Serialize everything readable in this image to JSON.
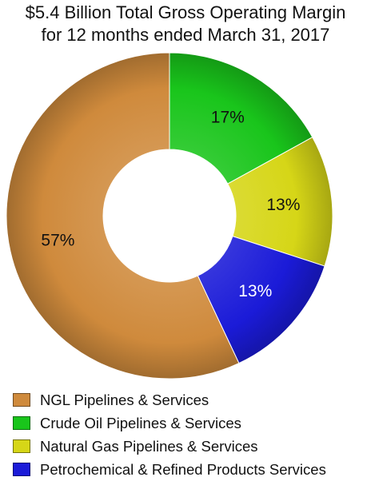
{
  "chart_data": {
    "type": "pie",
    "title_lines": [
      "$5.4 Billion Total Gross Operating Margin",
      "for 12 months ended March 31, 2017"
    ],
    "donut": true,
    "categories": [
      "Crude Oil Pipelines & Services",
      "Natural Gas Pipelines & Services",
      "Petrochemical & Refined Products Services",
      "NGL Pipelines & Services"
    ],
    "values": [
      17,
      13,
      13,
      57
    ],
    "data_labels": [
      "17%",
      "13%",
      "13%",
      "57%"
    ],
    "colors": [
      "#19c51b",
      "#d6d617",
      "#1b1bd8",
      "#cf8a3c"
    ],
    "label_colors": [
      "#111111",
      "#111111",
      "#ffffff",
      "#111111"
    ],
    "legend_placement": "bottom",
    "legend": [
      {
        "label": "NGL Pipelines & Services",
        "color": "#cf8a3c"
      },
      {
        "label": "Crude Oil Pipelines & Services",
        "color": "#19c51b"
      },
      {
        "label": "Natural Gas Pipelines & Services",
        "color": "#d6d617"
      },
      {
        "label": "Petrochemical & Refined Products Services",
        "color": "#1b1bd8"
      }
    ]
  }
}
